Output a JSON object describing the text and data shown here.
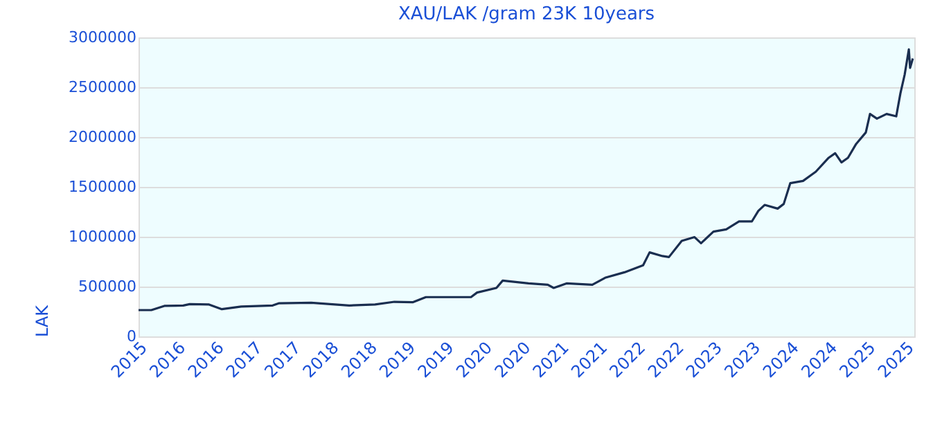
{
  "chart_data": {
    "type": "line",
    "title": "XAU/LAK /gram 23K 10years",
    "ylabel": "LAK",
    "x": [
      "2015-10",
      "2015-12",
      "2016-02",
      "2016-05",
      "2016-06",
      "2016-09",
      "2016-11",
      "2017-02",
      "2017-07",
      "2017-08",
      "2018-01",
      "2018-04",
      "2018-07",
      "2018-11",
      "2019-02",
      "2019-05",
      "2019-07",
      "2019-12",
      "2020-02",
      "2020-03",
      "2020-06",
      "2020-07",
      "2020-11",
      "2021-02",
      "2021-03",
      "2021-05",
      "2021-09",
      "2021-11",
      "2022-02",
      "2022-05",
      "2022-06",
      "2022-08",
      "2022-09",
      "2022-11",
      "2023-01",
      "2023-02",
      "2023-04",
      "2023-06",
      "2023-08",
      "2023-10",
      "2023-11",
      "2023-12",
      "2024-02",
      "2024-03",
      "2024-04",
      "2024-06",
      "2024-08",
      "2024-10",
      "2024-11",
      "2024-12",
      "2025-01",
      "2025-02-09",
      "2025-03-27",
      "2025-04-16",
      "2025-05-19",
      "2025-07-04",
      "2025-08-19",
      "2025-09-08",
      "2025-09-28",
      "2025-10-18",
      "2025-10-24",
      "2025-11-06"
    ],
    "series": [
      {
        "color": "#1a2e50",
        "values": [
          264000,
          264000,
          306000,
          310000,
          324000,
          320000,
          273000,
          300000,
          310000,
          333000,
          338000,
          324000,
          310000,
          320000,
          347000,
          343000,
          394000,
          394000,
          394000,
          440000,
          486000,
          560000,
          532000,
          518000,
          486000,
          532000,
          518000,
          588000,
          643000,
          713000,
          843000,
          806000,
          796000,
          958000,
          996000,
          935000,
          1051000,
          1074000,
          1153000,
          1153000,
          1260000,
          1319000,
          1282000,
          1329000,
          1537000,
          1560000,
          1653000,
          1792000,
          1838000,
          1746000,
          1792000,
          1931000,
          2046000,
          2232000,
          2185000,
          2232000,
          2208000,
          2440000,
          2625000,
          2879000,
          2694000,
          2788000
        ]
      }
    ],
    "xlim": [
      "2015-10-01",
      "2025-11-13"
    ],
    "xticks": [
      {
        "value": "2015-10-01",
        "label": "2015"
      },
      {
        "value": "2016-04-01",
        "label": "2016"
      },
      {
        "value": "2016-10-01",
        "label": "2016"
      },
      {
        "value": "2017-04-01",
        "label": "2017"
      },
      {
        "value": "2017-10-01",
        "label": "2017"
      },
      {
        "value": "2018-04-01",
        "label": "2018"
      },
      {
        "value": "2018-10-01",
        "label": "2018"
      },
      {
        "value": "2019-04-01",
        "label": "2019"
      },
      {
        "value": "2019-10-01",
        "label": "2019"
      },
      {
        "value": "2020-04-01",
        "label": "2020"
      },
      {
        "value": "2020-10-01",
        "label": "2020"
      },
      {
        "value": "2021-04-01",
        "label": "2021"
      },
      {
        "value": "2021-10-01",
        "label": "2021"
      },
      {
        "value": "2022-04-01",
        "label": "2022"
      },
      {
        "value": "2022-10-01",
        "label": "2022"
      },
      {
        "value": "2023-04-01",
        "label": "2023"
      },
      {
        "value": "2023-10-01",
        "label": "2023"
      },
      {
        "value": "2024-04-01",
        "label": "2024"
      },
      {
        "value": "2024-10-01",
        "label": "2024"
      },
      {
        "value": "2025-04-01",
        "label": "2025"
      },
      {
        "value": "2025-10-01",
        "label": "2025"
      }
    ],
    "ylim": [
      0,
      3000000
    ],
    "yticks": [
      0,
      500000,
      1000000,
      1500000,
      2000000,
      2500000,
      3000000
    ],
    "grid": "y",
    "marker": "none",
    "line_style": "solid"
  }
}
